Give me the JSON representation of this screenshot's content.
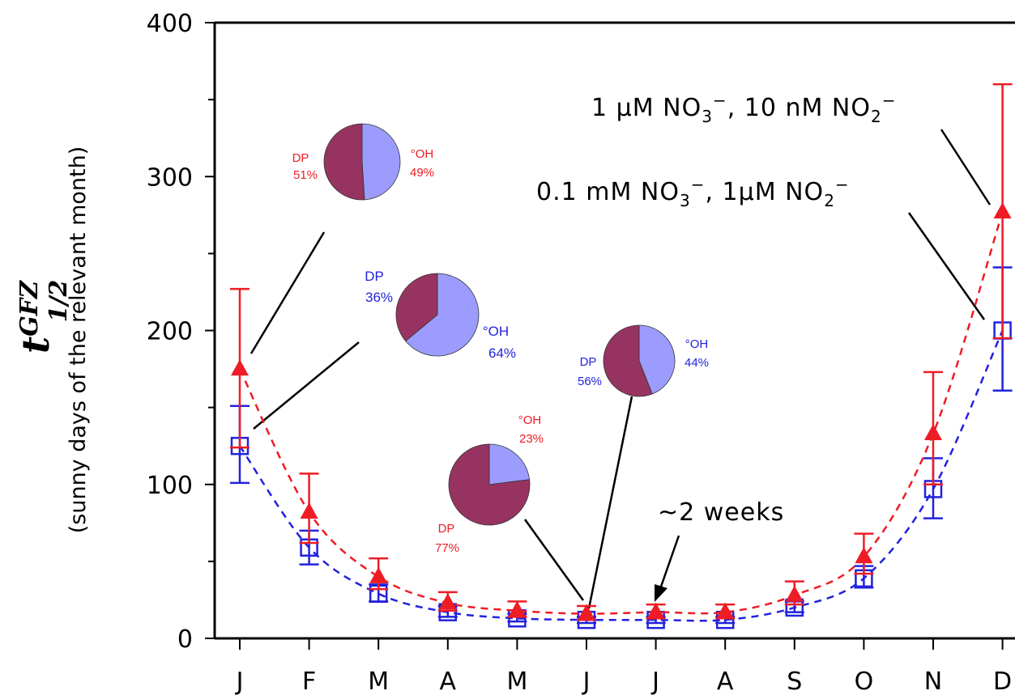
{
  "chart_data": {
    "type": "line",
    "categories": [
      "J",
      "F",
      "M",
      "A",
      "M",
      "J",
      "J",
      "A",
      "S",
      "O",
      "N",
      "D"
    ],
    "ylim": [
      0,
      400
    ],
    "yticks": [
      "0",
      "100",
      "200",
      "300",
      "400"
    ],
    "ylabel_main": "t",
    "ylabel_sup": "GFZ",
    "ylabel_sub": "1/2",
    "ylabel_desc": "(sunny days of the relevant month)",
    "grid": false,
    "series": [
      {
        "name": "1 μM NO3−, 10 nM NO2−",
        "color": "#ee1c25",
        "marker": "triangle",
        "values": [
          175,
          82,
          40,
          23,
          18,
          16,
          17,
          17,
          28,
          53,
          133,
          277
        ],
        "err_low": [
          124,
          62,
          32,
          18,
          14,
          12,
          13,
          13,
          22,
          42,
          100,
          195
        ],
        "err_high": [
          227,
          107,
          52,
          30,
          24,
          21,
          22,
          22,
          37,
          68,
          173,
          360
        ]
      },
      {
        "name": "0.1 mM NO3−, 1μM NO2−",
        "color": "#2222dd",
        "marker": "square",
        "values": [
          125,
          59,
          29,
          17,
          13,
          12,
          12,
          12,
          20,
          39,
          97,
          200
        ],
        "err_low": [
          101,
          48,
          24,
          14,
          11,
          10,
          10,
          10,
          17,
          33,
          78,
          161
        ],
        "err_high": [
          151,
          70,
          35,
          21,
          16,
          14,
          14,
          14,
          24,
          47,
          117,
          241
        ]
      }
    ],
    "annotations": {
      "label_1": {
        "prefix": "1 μM NO",
        "sub1": "3",
        "sup1": "−",
        "middle": ", 10 nM NO",
        "sub2": "2",
        "sup2": "−"
      },
      "label_2": {
        "prefix": "0.1 mM NO",
        "sub1": "3",
        "sup1": "−",
        "middle": ", 1μM NO",
        "sub2": "2",
        "sup2": "−"
      },
      "weeks": "~2 weeks"
    },
    "pies": [
      {
        "month_index": 0,
        "series": 0,
        "dp": 51,
        "oh": 49,
        "dp_label": "DP",
        "dp_value": "51%",
        "oh_label": "°OH",
        "oh_value": "49%"
      },
      {
        "month_index": 0,
        "series": 1,
        "dp": 36,
        "oh": 64,
        "dp_label": "DP",
        "dp_value": "36%",
        "oh_label": "°OH",
        "oh_value": "64%"
      },
      {
        "month_index": 5,
        "series": 0,
        "dp": 77,
        "oh": 23,
        "dp_label": "DP",
        "dp_value": "77%",
        "oh_label": "°OH",
        "oh_value": "23%"
      },
      {
        "month_index": 5,
        "series": 1,
        "dp": 56,
        "oh": 44,
        "dp_label": "DP",
        "dp_value": "56%",
        "oh_label": "°OH",
        "oh_value": "44%"
      }
    ],
    "pie_colors": {
      "dp": "#973361",
      "oh": "#9c9cff"
    }
  }
}
